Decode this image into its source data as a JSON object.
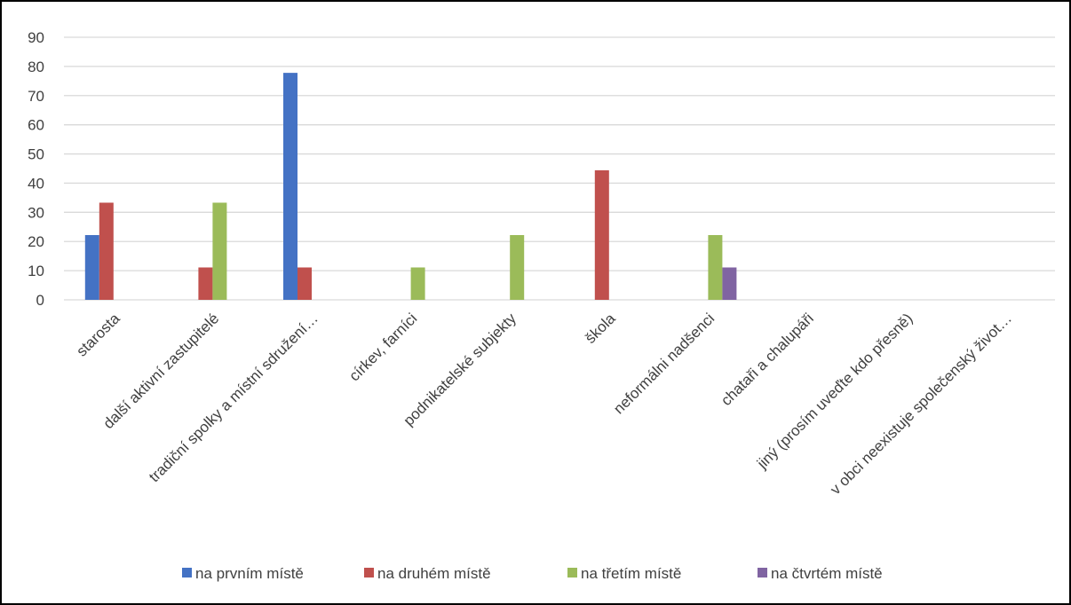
{
  "chart_data": {
    "type": "bar",
    "categories": [
      "starosta",
      "další aktivní zastupitelé",
      "tradiční spolky a místní sdružení…",
      "církev, farníci",
      "podnikatelské subjekty",
      "škola",
      "neformálni nadšenci",
      "chataři a chalupáři",
      "jiný (prosím uveďte kdo přesně)",
      "v obci neexistuje společenský život…"
    ],
    "series": [
      {
        "name": "na prvním místě",
        "color": "#4472C4",
        "values": [
          22.2,
          0,
          77.8,
          0,
          0,
          0,
          0,
          0,
          0,
          0
        ]
      },
      {
        "name": "na druhém místě",
        "color": "#C0504D",
        "values": [
          33.3,
          11.1,
          11.1,
          0,
          0,
          44.4,
          0,
          0,
          0,
          0
        ]
      },
      {
        "name": "na třetím místě",
        "color": "#9BBB59",
        "values": [
          0,
          33.3,
          0,
          11.1,
          22.2,
          0,
          22.2,
          0,
          0,
          0
        ]
      },
      {
        "name": "na čtvrtém místě",
        "color": "#8064A2",
        "values": [
          0,
          0,
          0,
          0,
          0,
          0,
          11.1,
          0,
          0,
          0
        ]
      }
    ],
    "ylim": [
      0,
      90
    ],
    "yticks": [
      0,
      10,
      20,
      30,
      40,
      50,
      60,
      70,
      80,
      90
    ],
    "grid": true,
    "legend_position": "bottom",
    "title": "",
    "xlabel": "",
    "ylabel": ""
  }
}
